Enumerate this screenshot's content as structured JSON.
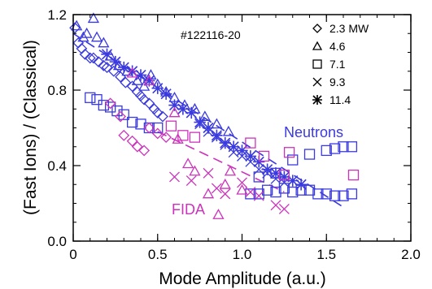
{
  "chart_data": {
    "type": "scatter",
    "title": "",
    "shot_label": "#122116-20",
    "xlabel": "Mode Amplitude (a.u.)",
    "ylabel": "(Fast Ions) / (Classical)",
    "xlim": [
      0,
      2.0
    ],
    "ylim": [
      0,
      1.2
    ],
    "x_ticks": [
      "0",
      "0.5",
      "1.0",
      "1.5",
      "2.0"
    ],
    "x_tick_values": [
      0,
      0.5,
      1.0,
      1.5,
      2.0
    ],
    "y_ticks": [
      "0.0",
      "0.4",
      "0.8",
      "1.2"
    ],
    "y_tick_values": [
      0.0,
      0.4,
      0.8,
      1.2
    ],
    "legend_placement": "top-right",
    "legend": [
      {
        "marker": "diamond",
        "label": "2.3 MW"
      },
      {
        "marker": "triangle",
        "label": "4.6"
      },
      {
        "marker": "square",
        "label": "7.1"
      },
      {
        "marker": "cross",
        "label": "9.3"
      },
      {
        "marker": "asterisk",
        "label": "11.4"
      }
    ],
    "colors": {
      "neutrons": "#3a3adf",
      "fida": "#cc33bb"
    },
    "annotations": [
      {
        "text": "Neutrons",
        "group": "neutrons"
      },
      {
        "text": "FIDA",
        "group": "fida"
      }
    ],
    "fits": [
      {
        "group": "neutrons",
        "style": "dashed",
        "x": [
          0.0,
          1.6
        ],
        "y": [
          1.1,
          0.18
        ]
      },
      {
        "group": "fida",
        "style": "dashed",
        "x": [
          0.5,
          1.25
        ],
        "y": [
          0.58,
          0.26
        ]
      }
    ],
    "series": [
      {
        "group": "neutrons",
        "marker": "diamond",
        "x": [
          0.01,
          0.03,
          0.05,
          0.07,
          0.1,
          0.12,
          0.15,
          0.18,
          0.2,
          0.24,
          0.28,
          0.31,
          0.35,
          0.38,
          0.4,
          0.42,
          0.45,
          0.48,
          0.5,
          0.53
        ],
        "y": [
          1.13,
          1.05,
          1.02,
          0.99,
          0.97,
          0.97,
          0.95,
          0.93,
          0.92,
          0.9,
          0.87,
          0.84,
          0.82,
          0.79,
          0.77,
          0.75,
          0.73,
          0.7,
          0.68,
          0.66
        ]
      },
      {
        "group": "neutrons",
        "marker": "triangle",
        "x": [
          0.02,
          0.06,
          0.08,
          0.12,
          0.14,
          0.18,
          0.22,
          0.27,
          0.32,
          0.38,
          0.42,
          0.46,
          0.5,
          0.55,
          0.6,
          0.66,
          0.72,
          0.78,
          0.85,
          0.92
        ],
        "y": [
          1.14,
          1.08,
          1.1,
          1.18,
          1.08,
          1.05,
          0.98,
          0.93,
          0.9,
          0.85,
          0.82,
          0.88,
          0.83,
          0.79,
          0.76,
          0.72,
          0.7,
          0.66,
          0.62,
          0.58
        ]
      },
      {
        "group": "neutrons",
        "marker": "square",
        "x": [
          0.1,
          0.14,
          0.18,
          0.22,
          0.26,
          0.3,
          0.35,
          0.4,
          0.45,
          0.5,
          1.05,
          1.1,
          1.15,
          1.2,
          1.25,
          1.3,
          1.35,
          1.4,
          1.45,
          1.5,
          1.55,
          1.6,
          1.65,
          1.1,
          1.2,
          1.3,
          1.4,
          1.5,
          1.55,
          1.6,
          1.65
        ],
        "y": [
          0.76,
          0.75,
          0.72,
          0.71,
          0.69,
          0.67,
          0.63,
          0.62,
          0.6,
          0.6,
          0.25,
          0.25,
          0.27,
          0.26,
          0.28,
          0.26,
          0.27,
          0.27,
          0.25,
          0.25,
          0.24,
          0.24,
          0.25,
          0.34,
          0.36,
          0.43,
          0.46,
          0.48,
          0.49,
          0.5,
          0.5
        ]
      },
      {
        "group": "neutrons",
        "marker": "cross",
        "x": [
          0.7,
          0.75,
          0.8,
          0.85,
          0.9,
          0.95,
          1.0,
          1.05,
          1.1,
          1.15,
          1.2,
          1.25
        ],
        "y": [
          0.68,
          0.62,
          0.58,
          0.55,
          0.51,
          0.47,
          0.45,
          0.42,
          0.38,
          0.36,
          0.33,
          0.31
        ]
      },
      {
        "group": "neutrons",
        "marker": "asterisk",
        "x": [
          0.2,
          0.25,
          0.3,
          0.35,
          0.4,
          0.45,
          0.5,
          0.55,
          0.6,
          0.65,
          0.7,
          0.75,
          0.8,
          0.85,
          0.9,
          0.95,
          1.0,
          1.05,
          1.1,
          1.15,
          1.2,
          1.25,
          1.3,
          1.35
        ],
        "y": [
          0.99,
          0.95,
          0.92,
          0.9,
          0.88,
          0.85,
          0.81,
          0.78,
          0.72,
          0.7,
          0.68,
          0.63,
          0.6,
          0.56,
          0.52,
          0.5,
          0.48,
          0.45,
          0.42,
          0.38,
          0.36,
          0.34,
          0.32,
          0.3
        ]
      },
      {
        "group": "fida",
        "marker": "diamond",
        "x": [
          0.22,
          0.28,
          0.3,
          0.35,
          0.38,
          0.42,
          0.45,
          0.5,
          0.55
        ],
        "y": [
          0.73,
          0.66,
          0.56,
          0.53,
          0.5,
          0.48,
          0.6,
          0.57,
          0.55
        ]
      },
      {
        "group": "fida",
        "marker": "triangle",
        "x": [
          0.35,
          0.45,
          0.6,
          0.62,
          0.68,
          0.72,
          0.8,
          0.86,
          0.9,
          0.93,
          1.0
        ],
        "y": [
          0.89,
          0.85,
          0.68,
          0.54,
          0.41,
          0.37,
          0.25,
          0.14,
          0.3,
          0.37,
          0.27
        ]
      },
      {
        "group": "fida",
        "marker": "square",
        "x": [
          0.58,
          0.65,
          0.72,
          1.05,
          1.13,
          1.25,
          1.28,
          1.66
        ],
        "y": [
          0.61,
          0.56,
          0.55,
          0.52,
          0.45,
          0.35,
          0.47,
          0.35
        ]
      },
      {
        "group": "fida",
        "marker": "cross",
        "x": [
          0.6,
          0.7,
          0.8,
          0.85,
          0.9,
          1.0,
          1.05,
          1.1,
          1.2,
          1.25
        ],
        "y": [
          0.34,
          0.32,
          0.36,
          0.28,
          0.25,
          0.31,
          0.26,
          0.24,
          0.19,
          0.17
        ]
      }
    ]
  }
}
